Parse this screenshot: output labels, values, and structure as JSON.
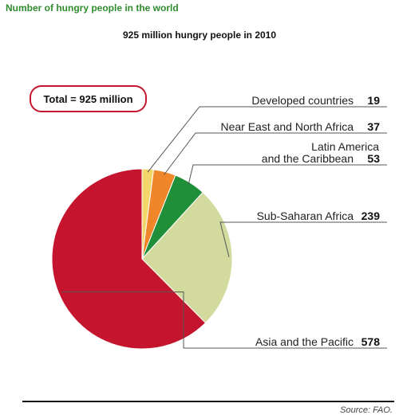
{
  "header": {
    "title": "Number of hungry people in the world"
  },
  "chart_data": {
    "type": "pie",
    "title": "925 million hungry people in 2010",
    "total_label": "Total = 925 million",
    "unit": "million",
    "slices": [
      {
        "name": "Developed countries",
        "value": 19,
        "color": "#f2d66a"
      },
      {
        "name": "Near East and North Africa",
        "value": 37,
        "color": "#f0862a"
      },
      {
        "name": "Latin America and the Caribbean",
        "value": 53,
        "color": "#1f8f3a"
      },
      {
        "name": "Sub-Saharan Africa",
        "value": 239,
        "color": "#d3da9e"
      },
      {
        "name": "Asia and the Pacific",
        "value": 578,
        "color": "#c5152e"
      }
    ]
  },
  "footer": {
    "source": "Source: FAO."
  }
}
